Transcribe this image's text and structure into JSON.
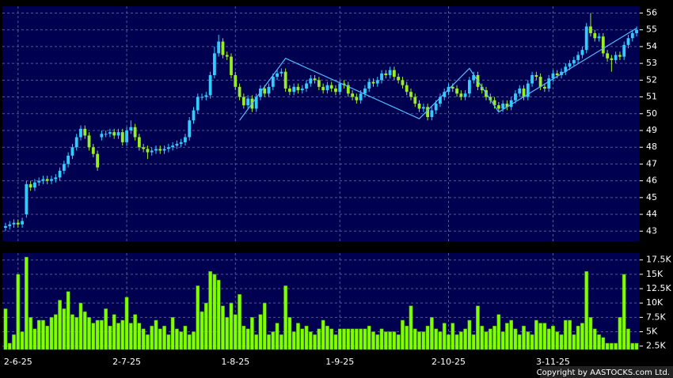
{
  "chart_data": [
    {
      "type": "candlestick",
      "xlim": [
        -0.75,
        151.75
      ],
      "ylim": [
        42.4,
        56.4
      ],
      "yticks": [
        43,
        44,
        45,
        46,
        47,
        48,
        49,
        50,
        51,
        52,
        53,
        54,
        55,
        56
      ],
      "grid": true,
      "up_color": "#33ccff",
      "down_color": "#99ee22",
      "line_color": "#55bbff",
      "open": [
        43.2,
        43.3,
        43.4,
        43.5,
        43.4,
        44.0,
        45.8,
        45.6,
        45.9,
        46.0,
        46.1,
        46.0,
        46.1,
        46.2,
        46.6,
        47.0,
        47.5,
        48.0,
        48.6,
        49.1,
        48.7,
        48.0,
        47.6,
        48.6,
        48.8,
        48.8,
        48.9,
        48.7,
        48.9,
        48.3,
        49.0,
        49.2,
        48.6,
        48.0,
        47.9,
        47.7,
        47.8,
        47.9,
        47.8,
        47.9,
        48.0,
        48.1,
        48.2,
        48.3,
        48.6,
        49.6,
        50.2,
        51.0,
        51.0,
        51.1,
        52.3,
        53.6,
        54.3,
        53.5,
        53.4,
        52.3,
        51.6,
        51.0,
        50.5,
        50.9,
        50.3,
        51.0,
        51.5,
        51.2,
        51.6,
        52.2,
        52.4,
        52.5,
        51.5,
        51.3,
        51.6,
        51.4,
        51.5,
        51.8,
        52.1,
        52.0,
        51.6,
        51.4,
        51.7,
        51.5,
        51.3,
        51.8,
        51.7,
        51.2,
        51.0,
        50.8,
        51.2,
        51.5,
        51.9,
        51.8,
        52.0,
        52.4,
        52.3,
        52.6,
        52.2,
        52.0,
        51.7,
        51.3,
        51.0,
        50.6,
        50.3,
        50.4,
        49.8,
        50.2,
        50.6,
        51.0,
        51.3,
        51.6,
        51.5,
        51.2,
        51.0,
        51.2,
        52.0,
        52.3,
        51.6,
        51.4,
        51.0,
        50.8,
        50.5,
        50.3,
        50.6,
        50.4,
        50.8,
        51.2,
        51.5,
        51.0,
        51.8,
        52.3,
        52.2,
        51.6,
        51.5,
        52.1,
        52.4,
        52.3,
        52.5,
        52.8,
        53.0,
        53.2,
        53.5,
        53.8,
        55.2,
        54.8,
        54.5,
        54.6,
        53.6,
        53.3,
        53.2,
        53.5,
        53.4,
        54.1,
        54.5,
        54.8
      ],
      "high": [
        43.5,
        43.6,
        43.7,
        43.7,
        43.8,
        46.0,
        46.0,
        46.1,
        46.2,
        46.3,
        46.3,
        46.3,
        46.4,
        46.8,
        47.2,
        47.7,
        48.2,
        48.8,
        49.3,
        49.3,
        48.9,
        48.2,
        47.8,
        49.0,
        49.0,
        49.1,
        49.1,
        49.1,
        49.1,
        49.2,
        49.6,
        49.4,
        48.8,
        48.2,
        48.1,
        48.0,
        48.1,
        48.1,
        48.1,
        48.2,
        48.3,
        48.4,
        48.5,
        48.8,
        49.8,
        50.4,
        51.2,
        51.2,
        51.3,
        52.5,
        54.0,
        54.7,
        54.5,
        53.7,
        53.6,
        52.5,
        51.8,
        51.2,
        51.1,
        51.1,
        51.2,
        51.7,
        51.7,
        51.8,
        52.4,
        52.6,
        52.7,
        52.7,
        51.7,
        51.8,
        51.8,
        51.7,
        52.0,
        52.3,
        52.3,
        52.2,
        51.8,
        51.9,
        51.9,
        51.7,
        52.0,
        52.0,
        51.9,
        51.4,
        51.2,
        51.4,
        51.7,
        52.1,
        52.1,
        52.2,
        52.6,
        52.6,
        52.8,
        52.8,
        52.4,
        52.2,
        51.9,
        51.5,
        51.2,
        50.8,
        50.6,
        50.6,
        50.4,
        50.8,
        51.2,
        51.5,
        51.8,
        51.8,
        51.7,
        51.4,
        51.4,
        52.2,
        52.5,
        52.5,
        51.8,
        51.6,
        51.2,
        51.0,
        50.7,
        50.8,
        50.8,
        51.0,
        51.4,
        51.7,
        51.7,
        52.0,
        52.5,
        52.5,
        52.4,
        51.8,
        52.3,
        52.6,
        52.6,
        52.7,
        53.0,
        53.2,
        53.4,
        53.7,
        54.0,
        55.4,
        56.0,
        55.0,
        54.8,
        54.8,
        53.8,
        53.5,
        53.7,
        53.7,
        54.3,
        54.7,
        55.0,
        55.2
      ],
      "low": [
        43.0,
        43.1,
        43.2,
        43.2,
        43.2,
        43.8,
        45.4,
        45.4,
        45.7,
        45.8,
        45.8,
        45.8,
        45.9,
        46.0,
        46.4,
        46.8,
        47.3,
        47.8,
        48.4,
        48.5,
        47.8,
        47.4,
        46.6,
        48.4,
        48.6,
        48.6,
        48.5,
        48.5,
        48.1,
        48.1,
        48.8,
        48.4,
        47.8,
        47.7,
        47.3,
        47.5,
        47.6,
        47.6,
        47.6,
        47.7,
        47.8,
        47.9,
        48.0,
        48.1,
        48.4,
        49.4,
        50.0,
        50.8,
        50.8,
        50.9,
        52.1,
        53.4,
        53.3,
        53.2,
        52.1,
        51.4,
        50.8,
        50.3,
        50.3,
        50.1,
        50.1,
        50.8,
        51.0,
        51.0,
        51.4,
        52.0,
        52.2,
        51.3,
        51.1,
        51.1,
        51.2,
        51.2,
        51.3,
        51.6,
        51.8,
        51.4,
        51.2,
        51.2,
        51.3,
        51.1,
        51.1,
        51.5,
        51.0,
        50.8,
        50.6,
        50.6,
        51.0,
        51.3,
        51.6,
        51.6,
        51.8,
        52.1,
        52.1,
        52.0,
        51.8,
        51.5,
        51.1,
        50.8,
        50.4,
        50.1,
        50.1,
        49.6,
        49.6,
        50.0,
        50.4,
        50.8,
        51.1,
        51.3,
        51.0,
        50.8,
        50.8,
        51.0,
        51.8,
        51.4,
        51.2,
        50.8,
        50.6,
        50.3,
        50.1,
        50.1,
        50.2,
        50.2,
        50.6,
        51.0,
        50.8,
        50.8,
        51.6,
        52.0,
        51.4,
        51.3,
        51.3,
        51.9,
        52.1,
        52.1,
        52.3,
        52.6,
        52.8,
        53.0,
        53.3,
        53.6,
        54.6,
        54.3,
        54.3,
        53.4,
        53.1,
        52.5,
        53.0,
        53.2,
        53.2,
        53.9,
        54.3,
        54.6
      ],
      "close": [
        43.3,
        43.4,
        43.5,
        43.4,
        43.6,
        45.8,
        45.6,
        45.9,
        46.0,
        46.1,
        46.0,
        46.1,
        46.2,
        46.6,
        47.0,
        47.5,
        48.0,
        48.6,
        49.1,
        48.7,
        48.0,
        47.6,
        46.8,
        48.8,
        48.8,
        48.9,
        48.7,
        48.9,
        48.3,
        49.0,
        49.2,
        48.6,
        48.0,
        47.9,
        47.7,
        47.8,
        47.9,
        47.8,
        47.9,
        48.0,
        48.1,
        48.2,
        48.3,
        48.6,
        49.6,
        50.2,
        51.0,
        51.0,
        51.1,
        52.3,
        53.6,
        54.3,
        53.5,
        53.4,
        52.3,
        51.6,
        51.0,
        50.5,
        50.9,
        50.3,
        51.0,
        51.5,
        51.2,
        51.6,
        52.2,
        52.4,
        52.5,
        51.5,
        51.3,
        51.6,
        51.4,
        51.5,
        51.8,
        52.1,
        52.0,
        51.6,
        51.4,
        51.7,
        51.5,
        51.3,
        51.8,
        51.7,
        51.2,
        51.0,
        50.8,
        51.2,
        51.5,
        51.9,
        51.8,
        52.0,
        52.4,
        52.3,
        52.6,
        52.2,
        52.0,
        51.7,
        51.3,
        51.0,
        50.6,
        50.3,
        50.4,
        49.8,
        50.2,
        50.6,
        51.0,
        51.3,
        51.6,
        51.5,
        51.2,
        51.0,
        51.2,
        52.0,
        52.3,
        51.6,
        51.4,
        51.0,
        50.8,
        50.5,
        50.3,
        50.6,
        50.4,
        50.8,
        51.2,
        51.5,
        51.0,
        51.8,
        52.3,
        52.2,
        51.6,
        51.5,
        52.1,
        52.4,
        52.3,
        52.5,
        52.8,
        53.0,
        53.2,
        53.5,
        53.8,
        55.2,
        54.8,
        54.5,
        54.6,
        53.6,
        53.3,
        53.2,
        53.5,
        53.4,
        54.1,
        54.5,
        54.8,
        55.0
      ],
      "line": {
        "x": [
          56,
          67,
          99,
          111,
          118,
          151
        ],
        "values": [
          49.6,
          53.3,
          49.7,
          52.7,
          50.1,
          55.1
        ]
      }
    },
    {
      "type": "bar",
      "color": "#7fff00",
      "xlim": [
        -0.75,
        151.75
      ],
      "ylim": [
        1900,
        18700
      ],
      "yticks": [
        {
          "value": 2500,
          "label": "2.5K"
        },
        {
          "value": 5000,
          "label": "5K"
        },
        {
          "value": 7500,
          "label": "7.5K"
        },
        {
          "value": 10000,
          "label": "10K"
        },
        {
          "value": 12500,
          "label": "12.5K"
        },
        {
          "value": 15000,
          "label": "15K"
        },
        {
          "value": 17500,
          "label": "17.5K"
        }
      ],
      "xticks": [
        {
          "value": 3,
          "label": "2-6-25"
        },
        {
          "value": 29,
          "label": "2-7-25"
        },
        {
          "value": 55,
          "label": "1-8-25"
        },
        {
          "value": 80,
          "label": "1-9-25"
        },
        {
          "value": 106,
          "label": "2-10-25"
        },
        {
          "value": 131,
          "label": "3-11-25"
        }
      ],
      "grid": true,
      "values": [
        9000,
        3000,
        4500,
        15000,
        5000,
        18000,
        7500,
        5500,
        7000,
        7000,
        6000,
        7500,
        8000,
        10500,
        9000,
        12000,
        8000,
        7500,
        10000,
        8500,
        7500,
        6500,
        7000,
        7000,
        9000,
        6000,
        8000,
        6500,
        7000,
        11000,
        6500,
        8000,
        6500,
        5500,
        4500,
        6000,
        7000,
        5500,
        6000,
        4500,
        7500,
        5500,
        5000,
        6000,
        4500,
        5000,
        13000,
        8500,
        10000,
        15500,
        15000,
        14000,
        9500,
        7500,
        10000,
        8000,
        11500,
        6000,
        5500,
        7500,
        4500,
        8000,
        10000,
        4500,
        5000,
        6500,
        4500,
        13000,
        7500,
        5000,
        6500,
        5500,
        6000,
        5000,
        4500,
        5500,
        7000,
        6000,
        5500,
        4500,
        5500,
        5500,
        5500,
        5500,
        5500,
        5500,
        5500,
        6000,
        5000,
        4500,
        5500,
        5000,
        5000,
        5000,
        4500,
        7000,
        6000,
        9500,
        5500,
        5000,
        5000,
        6000,
        7500,
        5500,
        5000,
        6500,
        4500,
        6500,
        4500,
        5000,
        5500,
        7000,
        4500,
        9500,
        6000,
        5000,
        5500,
        6000,
        8000,
        5000,
        6500,
        7000,
        5500,
        4500,
        6000,
        5000,
        4500,
        7000,
        6500,
        6500,
        5500,
        6000,
        5000,
        4500,
        7000,
        7000,
        4500,
        6000,
        6500,
        15500,
        7500,
        5500,
        4500,
        4000,
        3000,
        3000,
        3000,
        7500,
        15000,
        5500,
        3000,
        3000
      ]
    }
  ],
  "footer": "Copyright by AASTOCKS.com Ltd."
}
